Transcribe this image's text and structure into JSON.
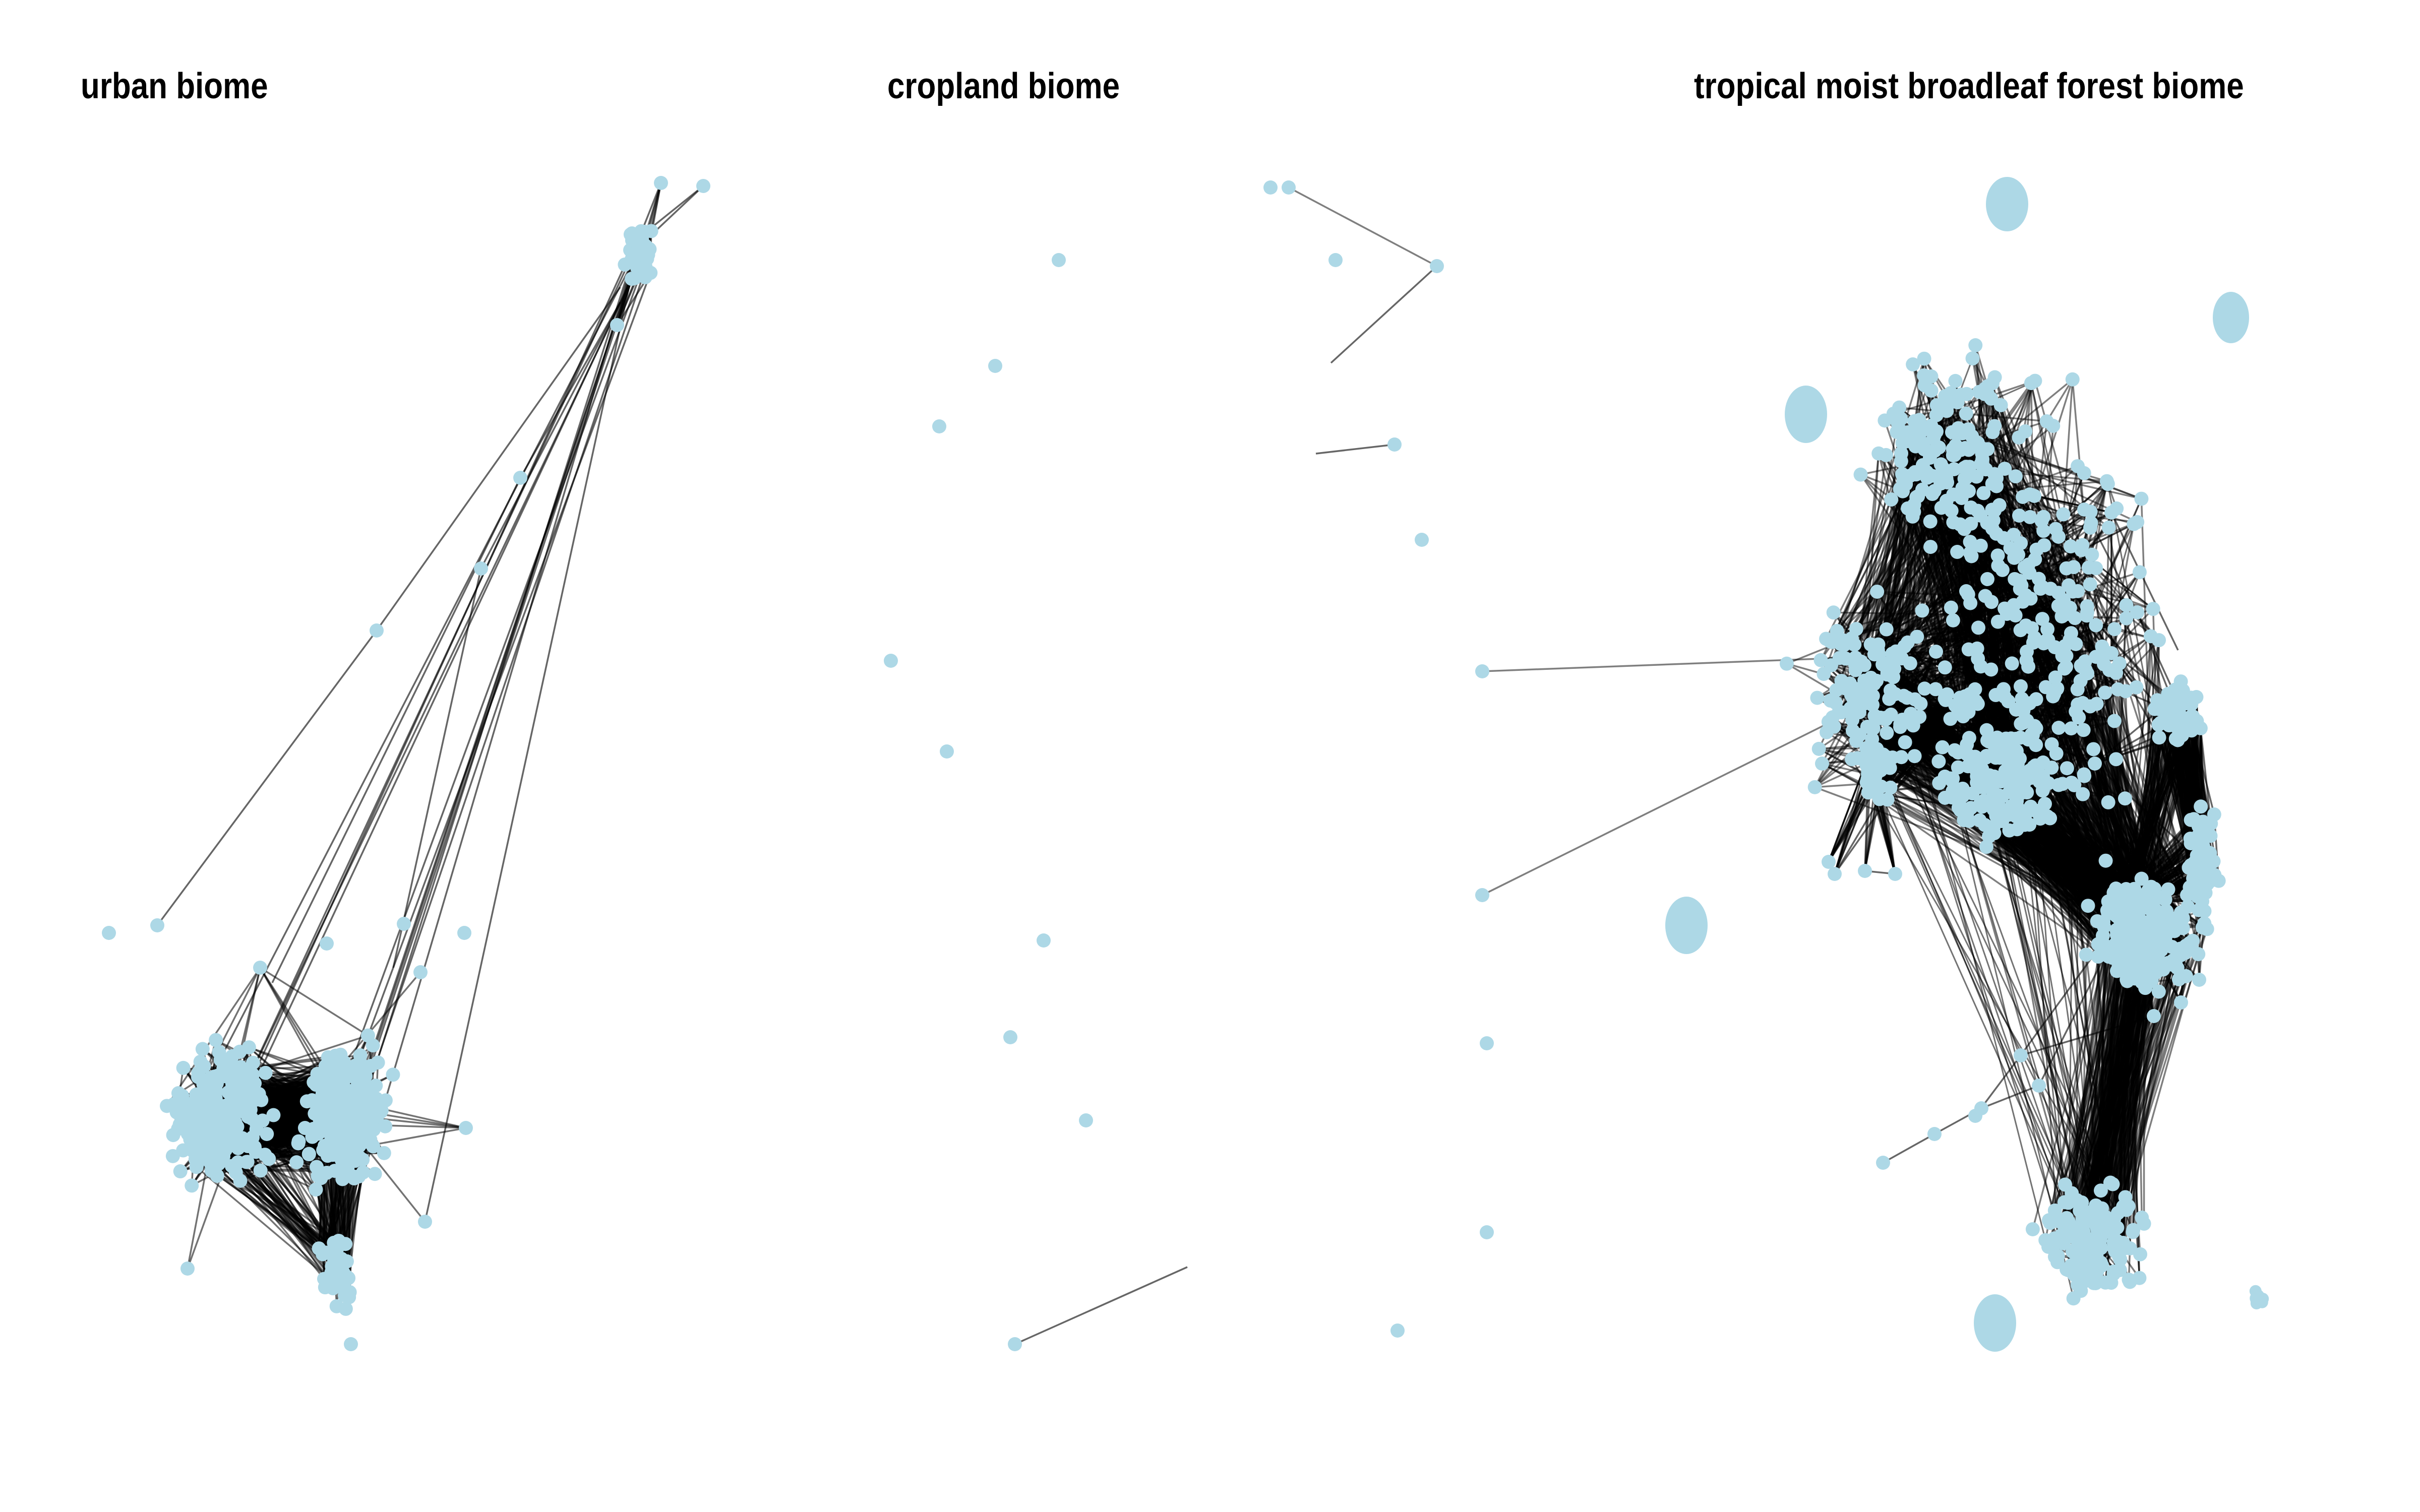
{
  "panels": [
    {
      "title": "urban biome"
    },
    {
      "title": "cropland biome"
    },
    {
      "title": "tropical moist broadleaf forest biome"
    }
  ],
  "colors": {
    "node": "#add8e6",
    "edge": "#000000",
    "background": "#ffffff"
  }
}
